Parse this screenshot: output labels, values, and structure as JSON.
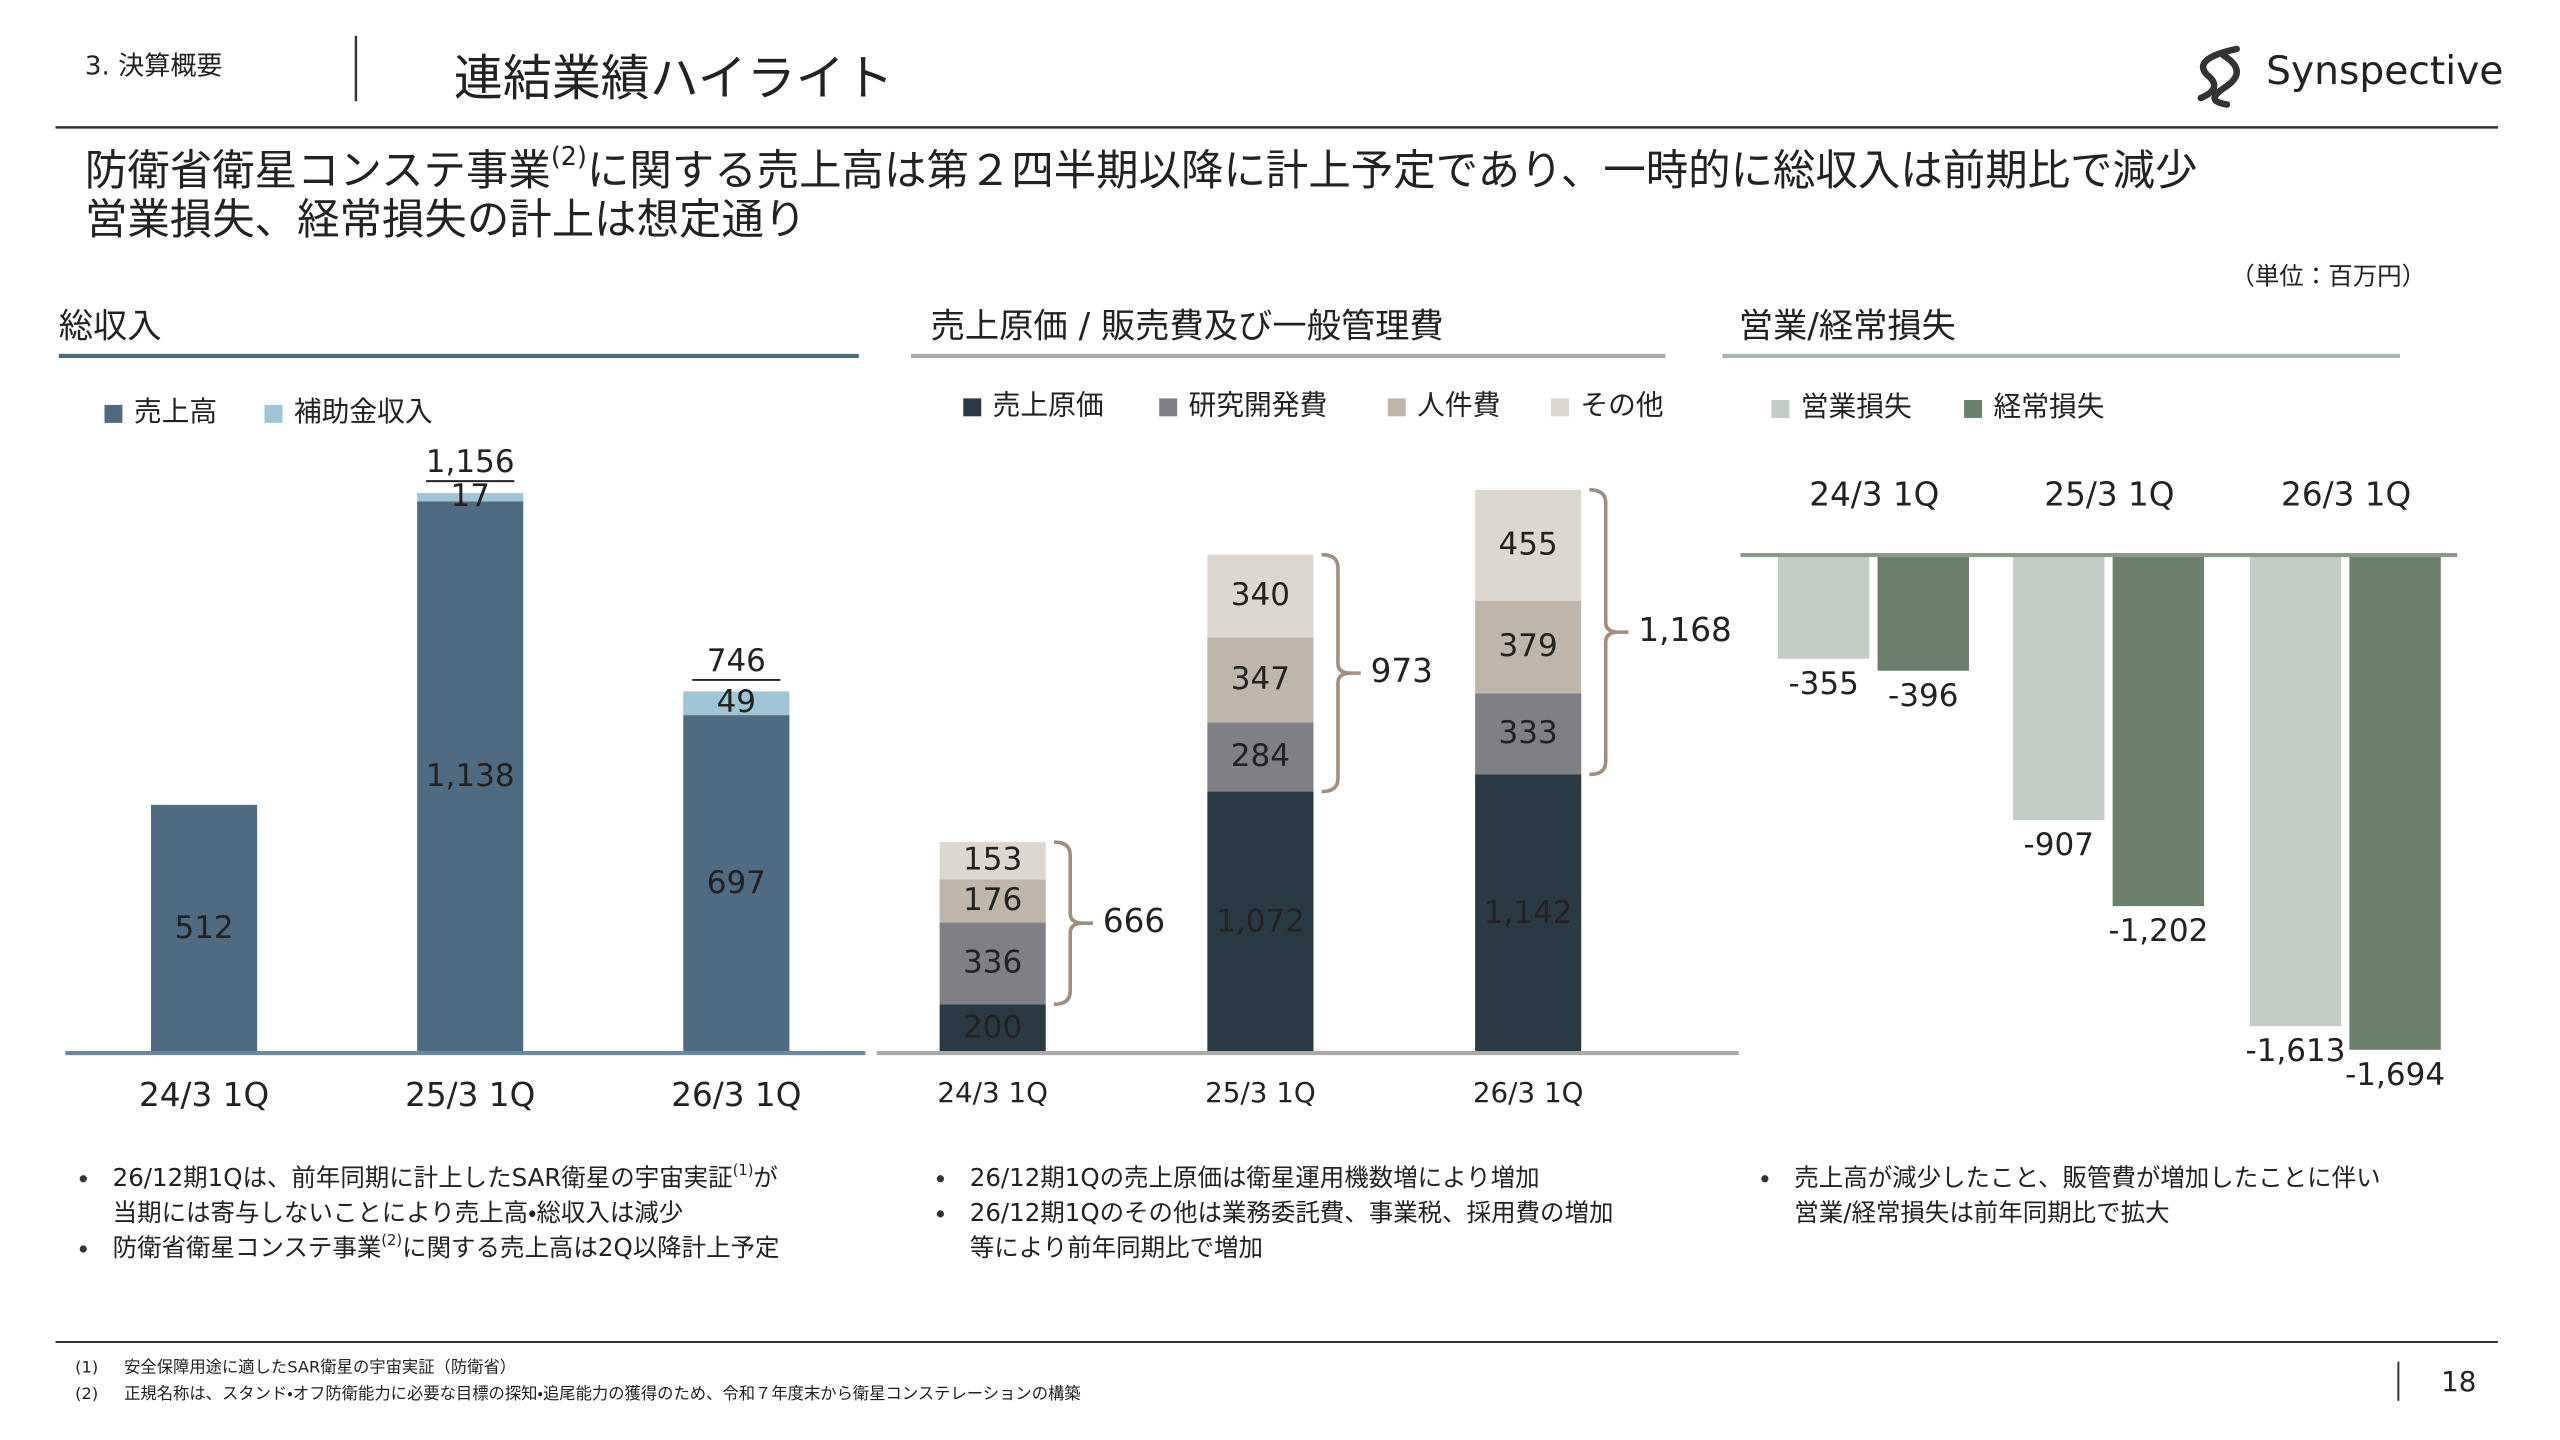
{
  "header": {
    "section": "3. 決算概要",
    "title": "連結業績ハイライト",
    "logo": "Synspective"
  },
  "headline": [
    [
      "防衛省衛星コンステ事業",
      "(2)",
      "に関する売上高は第２四半期以降に計上予定であり、一時的に総収入は前期比で減少"
    ],
    [
      "営業損失、経常損失の計上は想定通り"
    ]
  ],
  "unit": "（単位：百万円）",
  "chart_data": [
    {
      "type": "stacked_bar",
      "title": "総収入",
      "categories": [
        "24/3 1Q",
        "25/3 1Q",
        "26/3 1Q"
      ],
      "series": [
        {
          "name": "売上高",
          "color": "#4f6b82",
          "values": [
            512,
            1138,
            697
          ],
          "value_labels": [
            "512",
            "1,138",
            "697"
          ]
        },
        {
          "name": "補助金収入",
          "color": "#9fc5d6",
          "values": [
            null,
            17,
            49
          ]
        }
      ],
      "totals": [
        null,
        1156,
        746
      ],
      "total_labels": [
        null,
        "1,156",
        "746"
      ]
    },
    {
      "type": "stacked_bar",
      "title": "売上原価 / 販売費及び一般管理費",
      "categories": [
        "24/3 1Q",
        "25/3 1Q",
        "26/3 1Q"
      ],
      "series": [
        {
          "name": "売上原価",
          "color": "#2a3a45",
          "values": [
            200,
            1072,
            1142
          ],
          "value_labels": [
            "200",
            "1,072",
            "1,142"
          ]
        },
        {
          "name": "研究開発費",
          "color": "#7f7f86",
          "values": [
            336,
            284,
            333
          ]
        },
        {
          "name": "人件費",
          "color": "#bfb5aa",
          "values": [
            176,
            347,
            379
          ]
        },
        {
          "name": "その他",
          "color": "#dcd7cf",
          "values": [
            153,
            340,
            455
          ]
        }
      ],
      "brackets": [
        666,
        973,
        1168
      ],
      "bracket_labels": [
        "666",
        "973",
        "1,168"
      ]
    },
    {
      "type": "grouped_bar",
      "title": "営業/経常損失",
      "categories": [
        "24/3 1Q",
        "25/3 1Q",
        "26/3 1Q"
      ],
      "series": [
        {
          "name": "営業損失",
          "color": "#c3cdc5",
          "values": [
            -355,
            -907,
            -1613
          ],
          "value_labels": [
            "-355",
            "-907",
            "-1,613"
          ]
        },
        {
          "name": "経常損失",
          "color": "#6b806c",
          "values": [
            -396,
            -1202,
            -1694
          ],
          "value_labels": [
            "-396",
            "-1,202",
            "-1,694"
          ]
        }
      ]
    }
  ],
  "notes": [
    [
      [
        [
          "26/12期1Qは、前年同期に計上したSAR衛星の宇宙実証",
          "(1)",
          "が"
        ],
        [
          "当期には寄与しないことにより売上高・総収入は減少"
        ]
      ],
      [
        [
          "防衛省衛星コンステ事業",
          "(2)",
          "に関する売上高は2Q以降計上予定"
        ]
      ]
    ],
    [
      [
        [
          "26/12期1Qの売上原価は衛星運用機数増により増加"
        ]
      ],
      [
        [
          "26/12期1Qのその他は業務委託費、事業税、採用費の増加"
        ],
        [
          "等により前年同期比で増加"
        ]
      ]
    ],
    [
      [
        [
          "売上高が減少したこと、販管費が増加したことに伴い"
        ],
        [
          "営業/経常損失は前年同期比で拡大"
        ]
      ]
    ]
  ],
  "footnotes": [
    [
      "(1)",
      "安全保障用途に適したSAR衛星の宇宙実証（防衛省）"
    ],
    [
      "(2)",
      "正規名称は、スタンド・オフ防衛能力に必要な目標の探知・追尾能力の獲得のため、令和７年度末から衛星コンステレーションの構築"
    ]
  ],
  "page_number": "18"
}
